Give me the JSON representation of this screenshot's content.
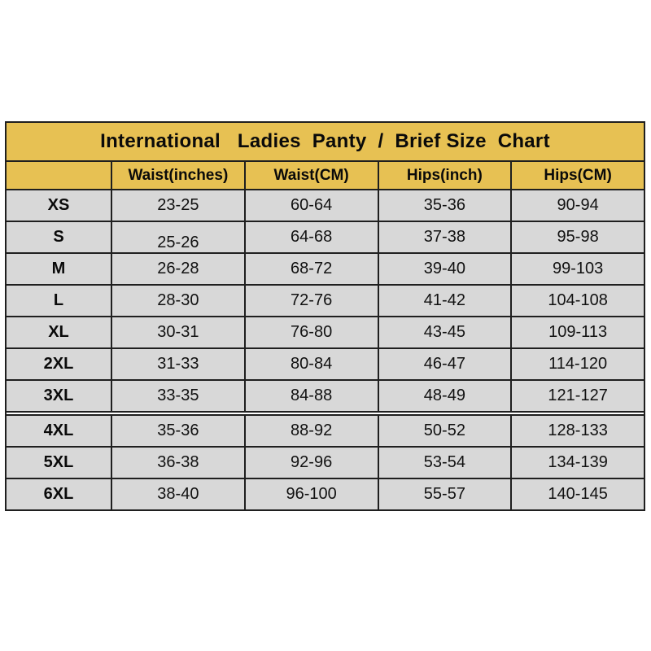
{
  "chart_data": {
    "type": "table",
    "title": "International   Ladies  Panty  /  Brief Size  Chart",
    "columns": [
      "",
      "Waist(inches)",
      "Waist(CM)",
      "Hips(inch)",
      "Hips(CM)"
    ],
    "rows": [
      [
        "XS",
        "23-25",
        "60-64",
        "35-36",
        "90-94"
      ],
      [
        "S",
        "25-26",
        "64-68",
        "37-38",
        "95-98"
      ],
      [
        "M",
        "26-28",
        "68-72",
        "39-40",
        "99-103"
      ],
      [
        "L",
        "28-30",
        "72-76",
        "41-42",
        "104-108"
      ],
      [
        "XL",
        "30-31",
        "76-80",
        "43-45",
        "109-113"
      ],
      [
        "2XL",
        "31-33",
        "80-84",
        "46-47",
        "114-120"
      ],
      [
        "3XL",
        "33-35",
        "84-88",
        "48-49",
        "121-127"
      ],
      [
        "4XL",
        "35-36",
        "88-92",
        "50-52",
        "128-133"
      ],
      [
        "5XL",
        "36-38",
        "92-96",
        "53-54",
        "134-139"
      ],
      [
        "6XL",
        "38-40",
        "96-100",
        "55-57",
        "140-145"
      ]
    ],
    "layout": {
      "grid": "on",
      "header_position": "top",
      "thick_divider_after_row": "3XL"
    },
    "colors": {
      "header_gold": "#E7C153",
      "row_gray": "#D8D8D8",
      "border": "#1f1f1f",
      "text": "#0a0a0a",
      "page_background": "#ffffff"
    }
  }
}
